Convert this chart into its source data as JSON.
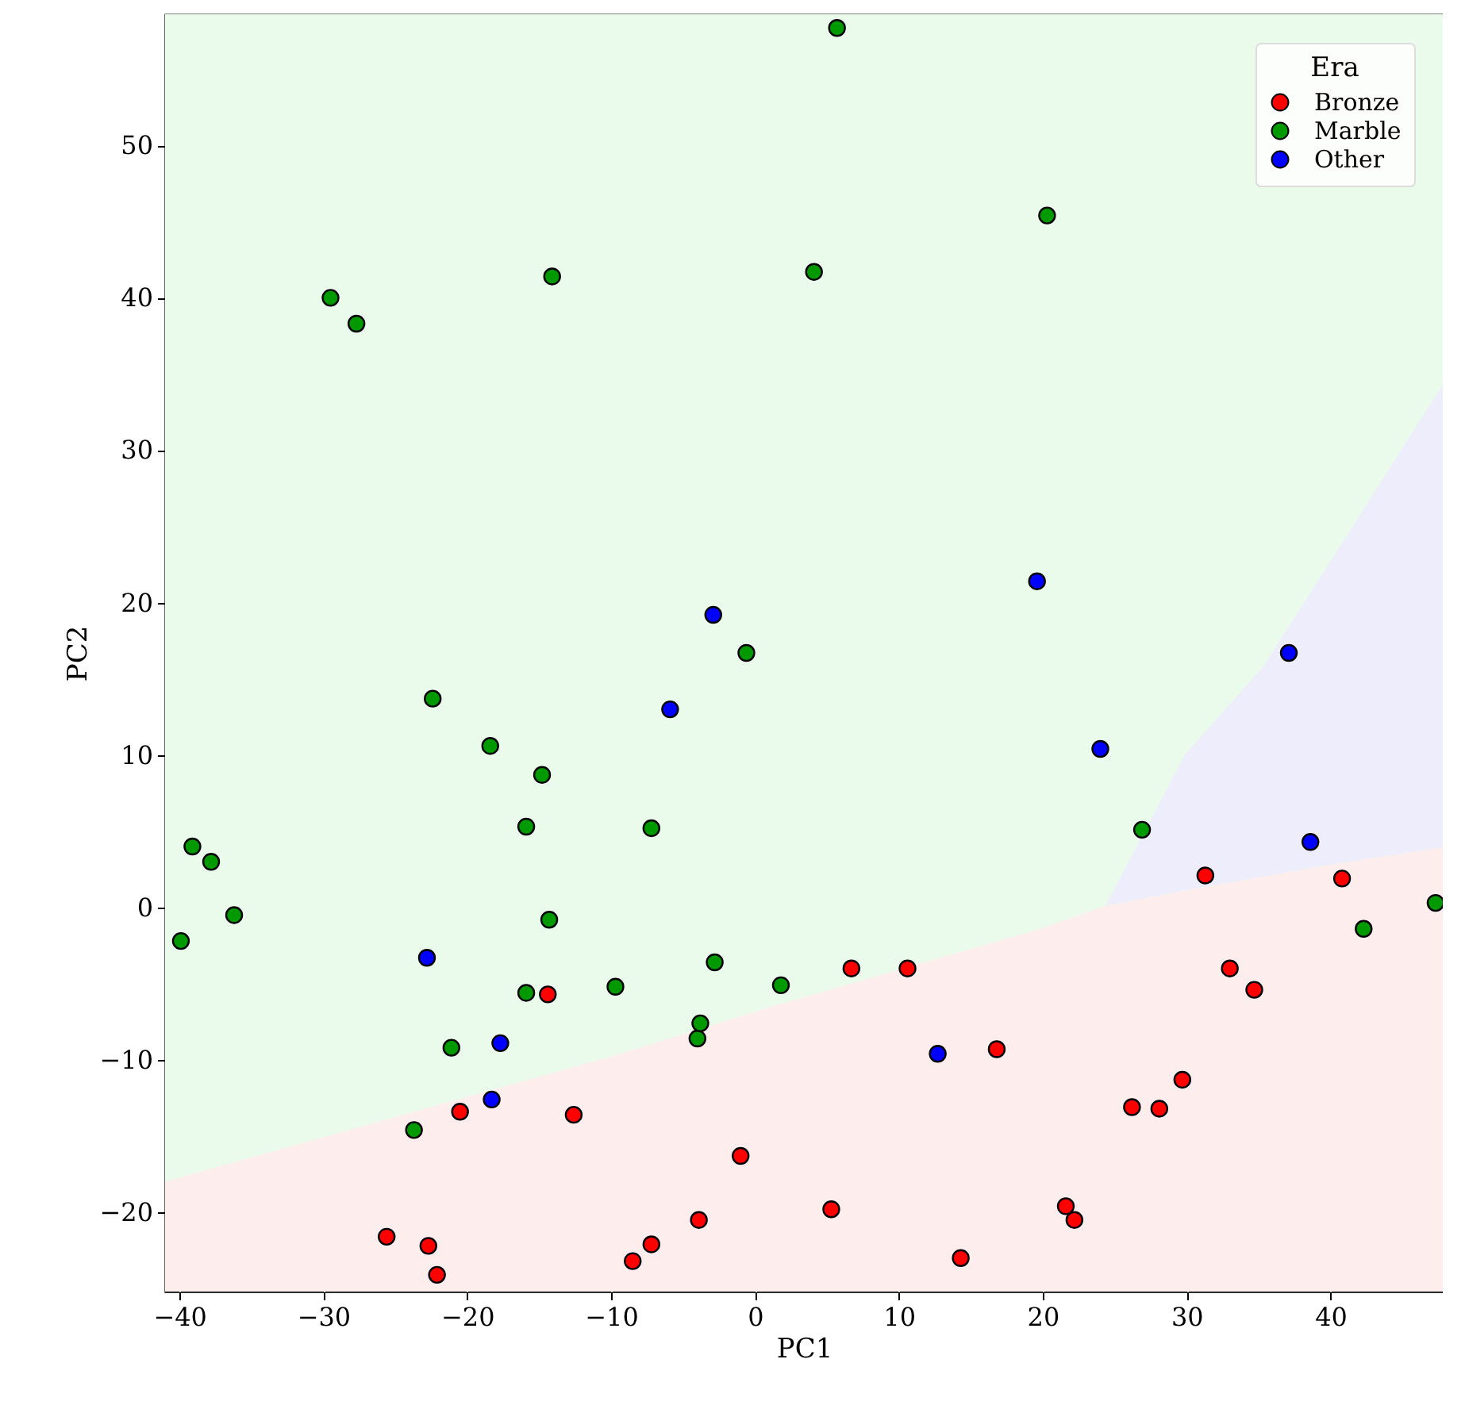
{
  "chart_data": {
    "type": "scatter",
    "xlabel": "PC1",
    "ylabel": "PC2",
    "legend_title": "Era",
    "legend": "top right",
    "grid": true,
    "marker": "circle",
    "xlim": [
      -41.0,
      47.8
    ],
    "ylim": [
      -25.2,
      58.6
    ],
    "xticks": [
      -40,
      -30,
      -20,
      -10,
      0,
      10,
      20,
      30,
      40
    ],
    "yticks": [
      -20,
      -10,
      0,
      10,
      20,
      30,
      40,
      50
    ],
    "series": [
      {
        "name": "Bronze",
        "color": "#ff0000",
        "x": [
          -25.6,
          -22.7,
          -22.1,
          -20.5,
          -14.4,
          -12.6,
          -8.5,
          -7.2,
          -3.9,
          -1.0,
          5.3,
          6.7,
          10.6,
          14.3,
          16.8,
          21.6,
          22.2,
          26.2,
          28.1,
          29.7,
          31.3,
          33.0,
          34.7,
          40.8
        ],
        "values": [
          -21.6,
          -22.2,
          -24.1,
          -13.4,
          -5.7,
          -13.6,
          -23.2,
          -22.1,
          -20.5,
          -16.3,
          -19.8,
          -4.0,
          -4.0,
          -23.0,
          -9.3,
          -19.6,
          -20.5,
          -13.1,
          -13.2,
          -11.3,
          2.1,
          -4.0,
          -5.4,
          1.9
        ]
      },
      {
        "name": "Marble",
        "color": "#009900",
        "x": [
          -39.9,
          -39.1,
          -37.8,
          -36.2,
          -29.5,
          -27.7,
          -23.7,
          -22.4,
          -21.1,
          -18.4,
          -15.9,
          -15.9,
          -14.8,
          -14.3,
          -14.1,
          -9.7,
          -7.2,
          -4.0,
          -3.8,
          -2.8,
          -0.6,
          1.8,
          4.1,
          5.7,
          20.3,
          26.9,
          42.3,
          47.3
        ],
        "values": [
          -2.2,
          4.0,
          3.0,
          -0.5,
          40.0,
          38.3,
          -14.6,
          13.7,
          -9.2,
          10.6,
          -5.6,
          5.3,
          8.7,
          -0.8,
          41.4,
          -5.2,
          5.2,
          -8.6,
          -7.6,
          -3.6,
          16.7,
          -5.1,
          41.7,
          57.7,
          45.4,
          5.1,
          -1.4,
          0.3
        ]
      },
      {
        "name": "Other",
        "color": "#0000ff",
        "x": [
          -22.8,
          -18.3,
          -17.7,
          -5.9,
          -2.9,
          12.7,
          19.6,
          24.0,
          37.1,
          38.6
        ],
        "values": [
          -3.3,
          -12.6,
          -8.9,
          13.0,
          19.2,
          -9.6,
          21.4,
          10.4,
          16.7,
          4.3
        ]
      }
    ]
  }
}
